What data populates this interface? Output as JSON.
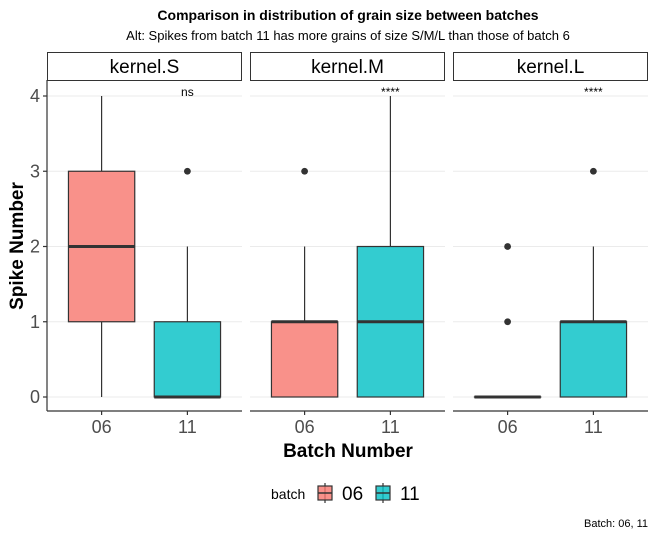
{
  "chart_data": {
    "type": "boxplot",
    "title": "Comparison in distribution of grain size between batches",
    "subtitle": "Alt: Spikes from batch 11 has more grains of size S/M/L than those of batch 6",
    "xlabel": "Batch Number",
    "ylabel": "Spike Number",
    "caption": "Batch: 06, 11",
    "ylim": [
      0,
      4
    ],
    "yticks": [
      "0",
      "1",
      "2",
      "3",
      "4"
    ],
    "categories": [
      "06",
      "11"
    ],
    "grid": "horizontal major",
    "legend": {
      "title": "batch",
      "position": "bottom",
      "entries": [
        {
          "label": "06",
          "color": "#F8766D"
        },
        {
          "label": "11",
          "color": "#00BFC4"
        }
      ]
    },
    "panels": [
      {
        "strip": "kernel.S",
        "significance": "ns",
        "boxes": [
          {
            "batch": "06",
            "min": 0,
            "q1": 1,
            "median": 2,
            "q3": 3,
            "max": 4,
            "outliers": []
          },
          {
            "batch": "11",
            "min": 0,
            "q1": 0,
            "median": 0,
            "q3": 1,
            "max": 2,
            "outliers": [
              3
            ]
          }
        ]
      },
      {
        "strip": "kernel.M",
        "significance": "****",
        "boxes": [
          {
            "batch": "06",
            "min": 0,
            "q1": 0,
            "median": 1,
            "q3": 1,
            "max": 2,
            "outliers": [
              3
            ]
          },
          {
            "batch": "11",
            "min": 0,
            "q1": 0,
            "median": 1,
            "q3": 2,
            "max": 4,
            "outliers": []
          }
        ]
      },
      {
        "strip": "kernel.L",
        "significance": "****",
        "boxes": [
          {
            "batch": "06",
            "min": 0,
            "q1": 0,
            "median": 0,
            "q3": 0,
            "max": 0,
            "outliers": [
              1,
              2
            ]
          },
          {
            "batch": "11",
            "min": 0,
            "q1": 0,
            "median": 1,
            "q3": 1,
            "max": 2,
            "outliers": [
              3
            ]
          }
        ]
      }
    ]
  }
}
